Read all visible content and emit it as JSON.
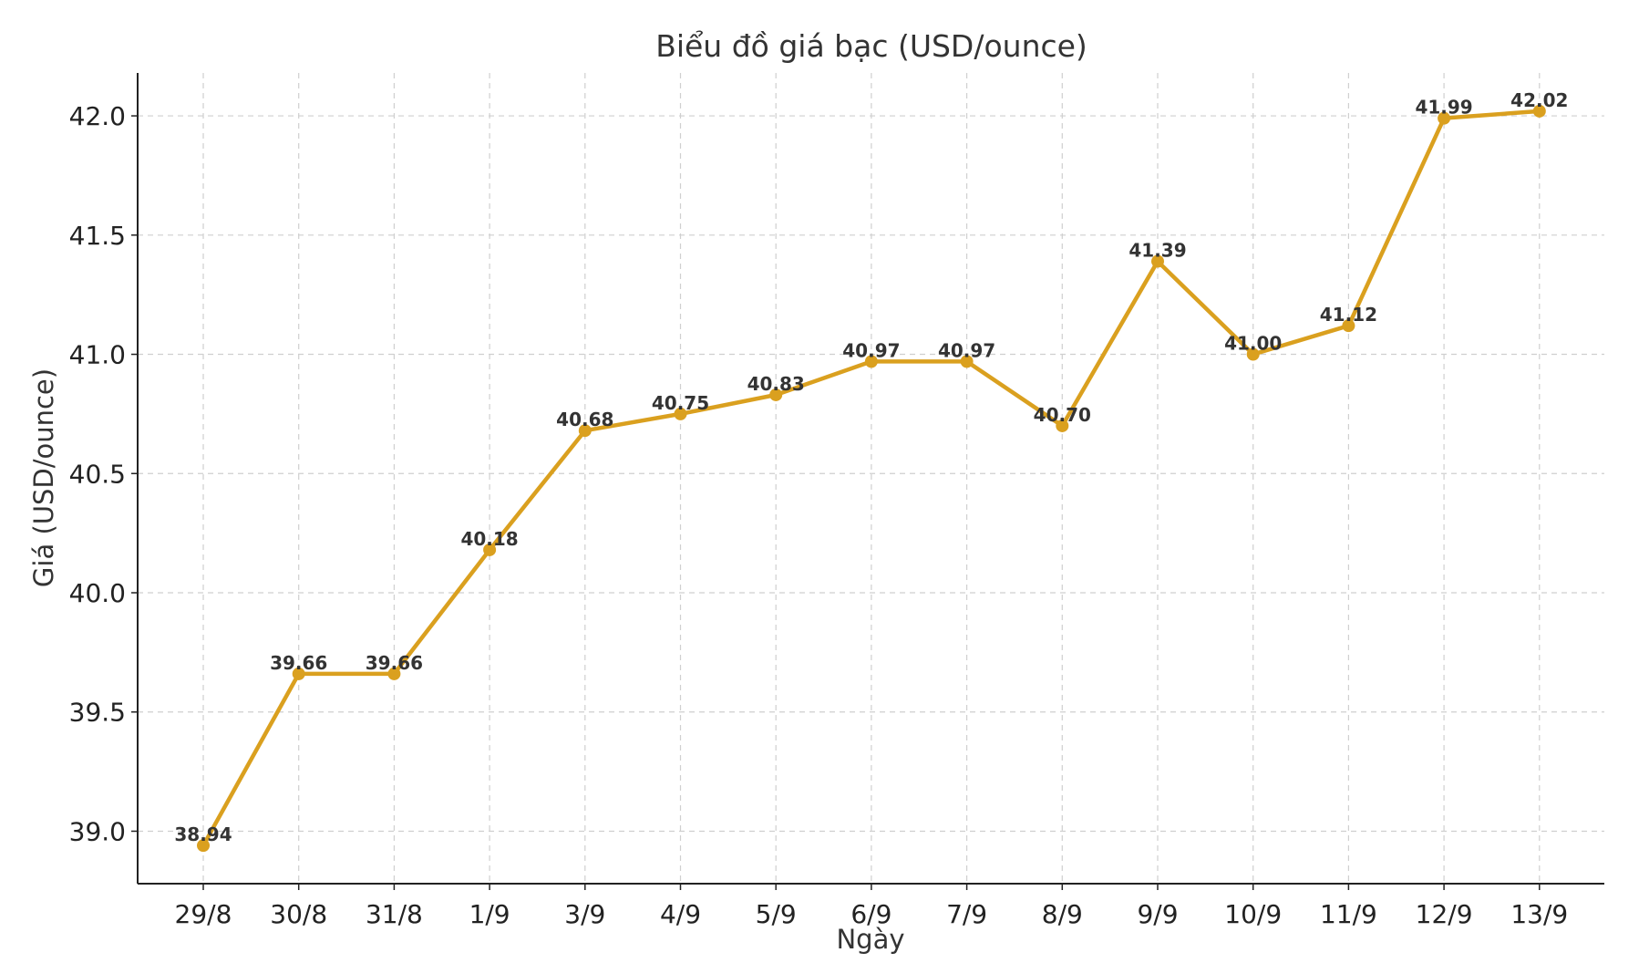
{
  "chart_data": {
    "type": "line",
    "title": "Biểu đồ giá bạc (USD/ounce)",
    "xlabel": "Ngày",
    "ylabel": "Giá (USD/ounce)",
    "categories": [
      "29/8",
      "30/8",
      "31/8",
      "1/9",
      "3/9",
      "4/9",
      "5/9",
      "6/9",
      "7/9",
      "8/9",
      "9/9",
      "10/9",
      "11/9",
      "12/9",
      "13/9"
    ],
    "series": [
      {
        "name": "Giá bạc",
        "values": [
          38.94,
          39.66,
          39.66,
          40.18,
          40.68,
          40.75,
          40.83,
          40.97,
          40.97,
          40.7,
          41.39,
          41.0,
          41.12,
          41.99,
          42.02
        ],
        "labels": [
          "38.94",
          "39.66",
          "39.66",
          "40.18",
          "40.68",
          "40.75",
          "40.83",
          "40.97",
          "40.97",
          "40.70",
          "41.39",
          "41.00",
          "41.12",
          "41.99",
          "42.02"
        ],
        "color": "#DAA01F"
      }
    ],
    "ylim": [
      38.78,
      42.18
    ],
    "yticks": [
      39.0,
      39.5,
      40.0,
      40.5,
      41.0,
      41.5,
      42.0
    ],
    "ytick_labels": [
      "39.0",
      "39.5",
      "40.0",
      "40.5",
      "41.0",
      "41.5",
      "42.0"
    ],
    "grid": true,
    "legend": "none"
  }
}
